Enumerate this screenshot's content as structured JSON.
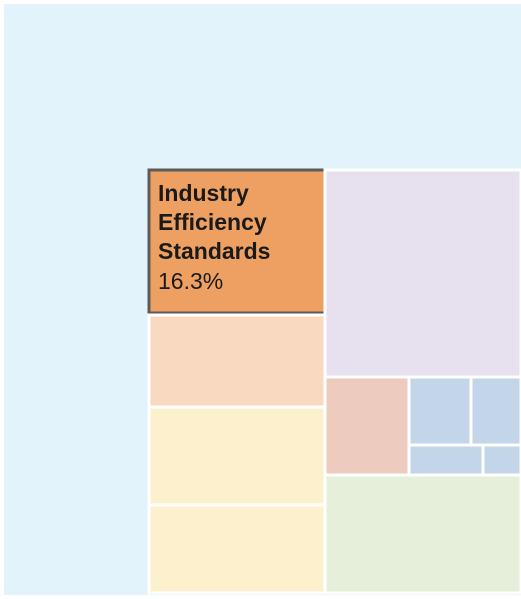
{
  "chart_data": {
    "type": "treemap",
    "title": "",
    "highlighted": {
      "label_lines": [
        "Industry",
        "Efficiency",
        "Standards"
      ],
      "value": "16.3%"
    },
    "tiles": [
      {
        "name": "tile-background-left",
        "color": "#e3f3fb"
      },
      {
        "name": "tile-highlighted",
        "color": "#eea062"
      },
      {
        "name": "tile-peach",
        "color": "#f9d9c0"
      },
      {
        "name": "tile-yellow-upper",
        "color": "#fdf0cc"
      },
      {
        "name": "tile-yellow-lower",
        "color": "#fdf0cc"
      },
      {
        "name": "tile-lavender",
        "color": "#e6e0ef"
      },
      {
        "name": "tile-rose",
        "color": "#eecbbf"
      },
      {
        "name": "tile-blue-1",
        "color": "#c3d6e9"
      },
      {
        "name": "tile-blue-2",
        "color": "#c3d6e9"
      },
      {
        "name": "tile-blue-3",
        "color": "#c3d6e9"
      },
      {
        "name": "tile-blue-4",
        "color": "#c3d6e9"
      },
      {
        "name": "tile-green",
        "color": "#e6efd9"
      }
    ]
  }
}
